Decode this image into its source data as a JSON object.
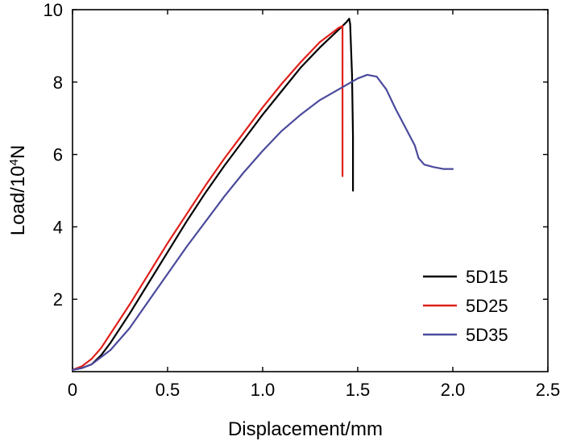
{
  "chart_data": {
    "type": "line",
    "title": "",
    "xlabel": "Displacement/mm",
    "ylabel": "Load/10",
    "ylabel_sup": "4",
    "ylabel_unit": "N",
    "xlim": [
      0,
      2.5
    ],
    "ylim": [
      0,
      10
    ],
    "xticks": [
      {
        "value": 0,
        "label": "0"
      },
      {
        "value": 0.5,
        "label": "0.5"
      },
      {
        "value": 1.0,
        "label": "1.0"
      },
      {
        "value": 1.5,
        "label": "1.5"
      },
      {
        "value": 2.0,
        "label": "2.0"
      },
      {
        "value": 2.5,
        "label": "2.5"
      }
    ],
    "yticks": [
      {
        "value": 2,
        "label": "2"
      },
      {
        "value": 4,
        "label": "4"
      },
      {
        "value": 6,
        "label": "6"
      },
      {
        "value": 8,
        "label": "8"
      },
      {
        "value": 10,
        "label": "10"
      }
    ],
    "grid": false,
    "legend_position": "lower-right",
    "series": [
      {
        "name": "5D15",
        "color": "#000000",
        "x": [
          0.0,
          0.05,
          0.1,
          0.15,
          0.2,
          0.3,
          0.4,
          0.5,
          0.6,
          0.7,
          0.8,
          0.9,
          1.0,
          1.1,
          1.2,
          1.3,
          1.4,
          1.44,
          1.455,
          1.46,
          1.47,
          1.475,
          1.475
        ],
        "y": [
          0.05,
          0.1,
          0.2,
          0.45,
          0.8,
          1.6,
          2.45,
          3.3,
          4.15,
          4.95,
          5.7,
          6.4,
          7.1,
          7.75,
          8.4,
          8.95,
          9.45,
          9.65,
          9.75,
          9.6,
          8.2,
          6.5,
          5.0
        ]
      },
      {
        "name": "5D25",
        "color": "#e0201a",
        "x": [
          0.0,
          0.05,
          0.1,
          0.15,
          0.2,
          0.3,
          0.4,
          0.5,
          0.6,
          0.7,
          0.8,
          0.9,
          1.0,
          1.1,
          1.2,
          1.3,
          1.4,
          1.42,
          1.42,
          1.42
        ],
        "y": [
          0.05,
          0.15,
          0.35,
          0.65,
          1.05,
          1.85,
          2.7,
          3.55,
          4.35,
          5.15,
          5.9,
          6.6,
          7.3,
          7.95,
          8.55,
          9.1,
          9.5,
          9.55,
          7.5,
          5.4
        ]
      },
      {
        "name": "5D35",
        "color": "#4b4a9c",
        "x": [
          0.0,
          0.05,
          0.1,
          0.2,
          0.3,
          0.4,
          0.5,
          0.6,
          0.7,
          0.8,
          0.9,
          1.0,
          1.1,
          1.2,
          1.3,
          1.4,
          1.5,
          1.55,
          1.6,
          1.65,
          1.7,
          1.75,
          1.8,
          1.82,
          1.85,
          1.9,
          1.95,
          2.0
        ],
        "y": [
          0.05,
          0.1,
          0.2,
          0.6,
          1.2,
          1.95,
          2.7,
          3.45,
          4.15,
          4.85,
          5.5,
          6.1,
          6.65,
          7.1,
          7.5,
          7.8,
          8.1,
          8.2,
          8.15,
          7.8,
          7.25,
          6.75,
          6.25,
          5.9,
          5.72,
          5.65,
          5.6,
          5.6
        ]
      }
    ]
  }
}
